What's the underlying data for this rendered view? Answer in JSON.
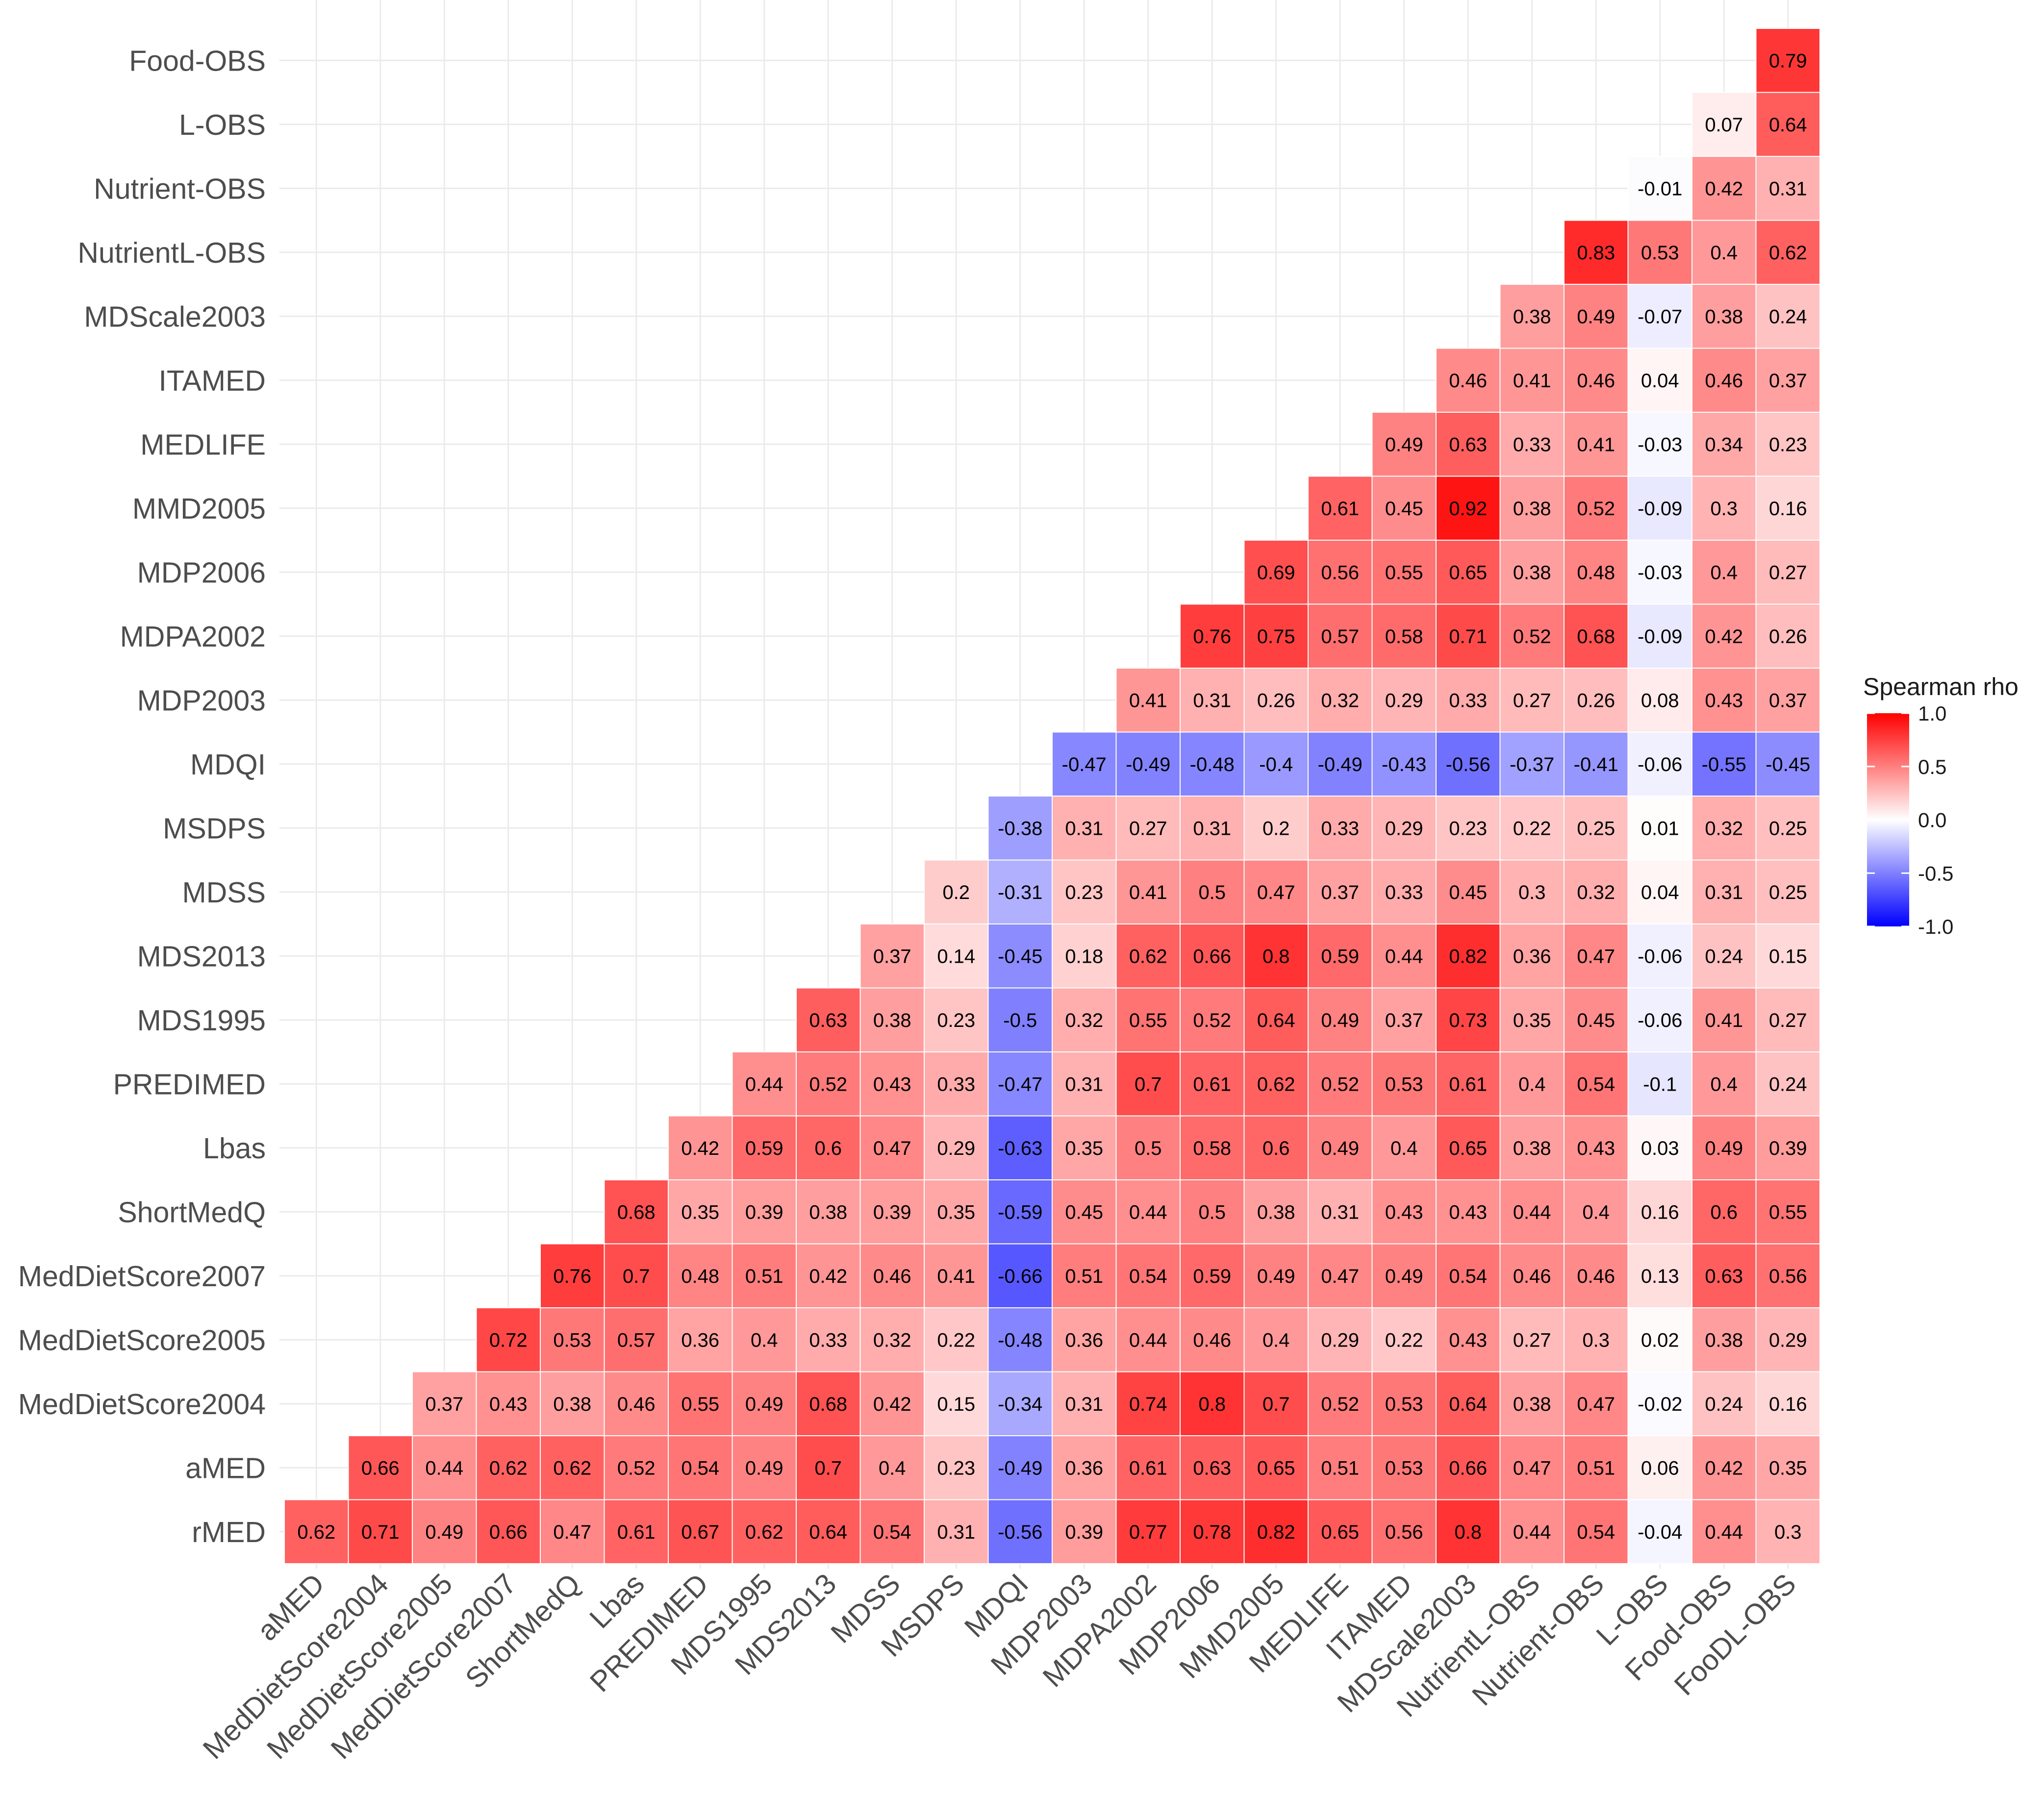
{
  "chart_data": {
    "type": "heatmap",
    "title": "",
    "xlabel": "",
    "ylabel": "",
    "x_labels": [
      "aMED",
      "MedDietScore2004",
      "MedDietScore2005",
      "MedDietScore2007",
      "ShortMedQ",
      "Lbas",
      "PREDIMED",
      "MDS1995",
      "MDS2013",
      "MDSS",
      "MSDPS",
      "MDQI",
      "MDP2003",
      "MDPA2002",
      "MDP2006",
      "MMD2005",
      "MEDLIFE",
      "ITAMED",
      "MDScale2003",
      "NutrientL-OBS",
      "Nutrient-OBS",
      "L-OBS",
      "Food-OBS",
      "FooDL-OBS"
    ],
    "y_labels": [
      "rMED",
      "aMED",
      "MedDietScore2004",
      "MedDietScore2005",
      "MedDietScore2007",
      "ShortMedQ",
      "Lbas",
      "PREDIMED",
      "MDS1995",
      "MDS2013",
      "MDSS",
      "MSDPS",
      "MDQI",
      "MDP2003",
      "MDPA2002",
      "MDP2006",
      "MMD2005",
      "MEDLIFE",
      "ITAMED",
      "MDScale2003",
      "NutrientL-OBS",
      "Nutrient-OBS",
      "L-OBS",
      "Food-OBS"
    ],
    "matrix": [
      [
        "0.62",
        "0.71",
        "0.49",
        "0.66",
        "0.47",
        "0.61",
        "0.67",
        "0.62",
        "0.64",
        "0.54",
        "0.31",
        "-0.56",
        "0.39",
        "0.77",
        "0.78",
        "0.82",
        "0.65",
        "0.56",
        "0.8",
        "0.44",
        "0.54",
        "-0.04",
        "0.44",
        "0.3"
      ],
      [
        null,
        "0.66",
        "0.44",
        "0.62",
        "0.62",
        "0.52",
        "0.54",
        "0.49",
        "0.7",
        "0.4",
        "0.23",
        "-0.49",
        "0.36",
        "0.61",
        "0.63",
        "0.65",
        "0.51",
        "0.53",
        "0.66",
        "0.47",
        "0.51",
        "0.06",
        "0.42",
        "0.35"
      ],
      [
        null,
        null,
        "0.37",
        "0.43",
        "0.38",
        "0.46",
        "0.55",
        "0.49",
        "0.68",
        "0.42",
        "0.15",
        "-0.34",
        "0.31",
        "0.74",
        "0.8",
        "0.7",
        "0.52",
        "0.53",
        "0.64",
        "0.38",
        "0.47",
        "-0.02",
        "0.24",
        "0.16"
      ],
      [
        null,
        null,
        null,
        "0.72",
        "0.53",
        "0.57",
        "0.36",
        "0.4",
        "0.33",
        "0.32",
        "0.22",
        "-0.48",
        "0.36",
        "0.44",
        "0.46",
        "0.4",
        "0.29",
        "0.22",
        "0.43",
        "0.27",
        "0.3",
        "0.02",
        "0.38",
        "0.29"
      ],
      [
        null,
        null,
        null,
        null,
        "0.76",
        "0.7",
        "0.48",
        "0.51",
        "0.42",
        "0.46",
        "0.41",
        "-0.66",
        "0.51",
        "0.54",
        "0.59",
        "0.49",
        "0.47",
        "0.49",
        "0.54",
        "0.46",
        "0.46",
        "0.13",
        "0.63",
        "0.56"
      ],
      [
        null,
        null,
        null,
        null,
        null,
        "0.68",
        "0.35",
        "0.39",
        "0.38",
        "0.39",
        "0.35",
        "-0.59",
        "0.45",
        "0.44",
        "0.5",
        "0.38",
        "0.31",
        "0.43",
        "0.43",
        "0.44",
        "0.4",
        "0.16",
        "0.6",
        "0.55"
      ],
      [
        null,
        null,
        null,
        null,
        null,
        null,
        "0.42",
        "0.59",
        "0.6",
        "0.47",
        "0.29",
        "-0.63",
        "0.35",
        "0.5",
        "0.58",
        "0.6",
        "0.49",
        "0.4",
        "0.65",
        "0.38",
        "0.43",
        "0.03",
        "0.49",
        "0.39"
      ],
      [
        null,
        null,
        null,
        null,
        null,
        null,
        null,
        "0.44",
        "0.52",
        "0.43",
        "0.33",
        "-0.47",
        "0.31",
        "0.7",
        "0.61",
        "0.62",
        "0.52",
        "0.53",
        "0.61",
        "0.4",
        "0.54",
        "-0.1",
        "0.4",
        "0.24"
      ],
      [
        null,
        null,
        null,
        null,
        null,
        null,
        null,
        null,
        "0.63",
        "0.38",
        "0.23",
        "-0.5",
        "0.32",
        "0.55",
        "0.52",
        "0.64",
        "0.49",
        "0.37",
        "0.73",
        "0.35",
        "0.45",
        "-0.06",
        "0.41",
        "0.27"
      ],
      [
        null,
        null,
        null,
        null,
        null,
        null,
        null,
        null,
        null,
        "0.37",
        "0.14",
        "-0.45",
        "0.18",
        "0.62",
        "0.66",
        "0.8",
        "0.59",
        "0.44",
        "0.82",
        "0.36",
        "0.47",
        "-0.06",
        "0.24",
        "0.15"
      ],
      [
        null,
        null,
        null,
        null,
        null,
        null,
        null,
        null,
        null,
        null,
        "0.2",
        "-0.31",
        "0.23",
        "0.41",
        "0.5",
        "0.47",
        "0.37",
        "0.33",
        "0.45",
        "0.3",
        "0.32",
        "0.04",
        "0.31",
        "0.25"
      ],
      [
        null,
        null,
        null,
        null,
        null,
        null,
        null,
        null,
        null,
        null,
        null,
        "-0.38",
        "0.31",
        "0.27",
        "0.31",
        "0.2",
        "0.33",
        "0.29",
        "0.23",
        "0.22",
        "0.25",
        "0.01",
        "0.32",
        "0.25"
      ],
      [
        null,
        null,
        null,
        null,
        null,
        null,
        null,
        null,
        null,
        null,
        null,
        null,
        "-0.47",
        "-0.49",
        "-0.48",
        "-0.4",
        "-0.49",
        "-0.43",
        "-0.56",
        "-0.37",
        "-0.41",
        "-0.06",
        "-0.55",
        "-0.45"
      ],
      [
        null,
        null,
        null,
        null,
        null,
        null,
        null,
        null,
        null,
        null,
        null,
        null,
        null,
        "0.41",
        "0.31",
        "0.26",
        "0.32",
        "0.29",
        "0.33",
        "0.27",
        "0.26",
        "0.08",
        "0.43",
        "0.37"
      ],
      [
        null,
        null,
        null,
        null,
        null,
        null,
        null,
        null,
        null,
        null,
        null,
        null,
        null,
        null,
        "0.76",
        "0.75",
        "0.57",
        "0.58",
        "0.71",
        "0.52",
        "0.68",
        "-0.09",
        "0.42",
        "0.26"
      ],
      [
        null,
        null,
        null,
        null,
        null,
        null,
        null,
        null,
        null,
        null,
        null,
        null,
        null,
        null,
        null,
        "0.69",
        "0.56",
        "0.55",
        "0.65",
        "0.38",
        "0.48",
        "-0.03",
        "0.4",
        "0.27"
      ],
      [
        null,
        null,
        null,
        null,
        null,
        null,
        null,
        null,
        null,
        null,
        null,
        null,
        null,
        null,
        null,
        null,
        "0.61",
        "0.45",
        "0.92",
        "0.38",
        "0.52",
        "-0.09",
        "0.3",
        "0.16"
      ],
      [
        null,
        null,
        null,
        null,
        null,
        null,
        null,
        null,
        null,
        null,
        null,
        null,
        null,
        null,
        null,
        null,
        null,
        "0.49",
        "0.63",
        "0.33",
        "0.41",
        "-0.03",
        "0.34",
        "0.23"
      ],
      [
        null,
        null,
        null,
        null,
        null,
        null,
        null,
        null,
        null,
        null,
        null,
        null,
        null,
        null,
        null,
        null,
        null,
        null,
        "0.46",
        "0.41",
        "0.46",
        "0.04",
        "0.46",
        "0.37"
      ],
      [
        null,
        null,
        null,
        null,
        null,
        null,
        null,
        null,
        null,
        null,
        null,
        null,
        null,
        null,
        null,
        null,
        null,
        null,
        null,
        "0.38",
        "0.49",
        "-0.07",
        "0.38",
        "0.24"
      ],
      [
        null,
        null,
        null,
        null,
        null,
        null,
        null,
        null,
        null,
        null,
        null,
        null,
        null,
        null,
        null,
        null,
        null,
        null,
        null,
        null,
        "0.83",
        "0.53",
        "0.4",
        "0.62"
      ],
      [
        null,
        null,
        null,
        null,
        null,
        null,
        null,
        null,
        null,
        null,
        null,
        null,
        null,
        null,
        null,
        null,
        null,
        null,
        null,
        null,
        null,
        "-0.01",
        "0.42",
        "0.31"
      ],
      [
        null,
        null,
        null,
        null,
        null,
        null,
        null,
        null,
        null,
        null,
        null,
        null,
        null,
        null,
        null,
        null,
        null,
        null,
        null,
        null,
        null,
        null,
        "0.07",
        "0.64"
      ],
      [
        null,
        null,
        null,
        null,
        null,
        null,
        null,
        null,
        null,
        null,
        null,
        null,
        null,
        null,
        null,
        null,
        null,
        null,
        null,
        null,
        null,
        null,
        null,
        "0.79"
      ]
    ],
    "color_range": [
      -1.0,
      1.0
    ],
    "colors": {
      "low": "#0000ff",
      "mid": "#ffffff",
      "high": "#ff0000",
      "grid": "#ebebeb"
    },
    "legend": {
      "title": "Spearman rho",
      "ticks": [
        "1.0",
        "0.5",
        "0.0",
        "-0.5",
        "-1.0"
      ],
      "position": "right"
    }
  }
}
